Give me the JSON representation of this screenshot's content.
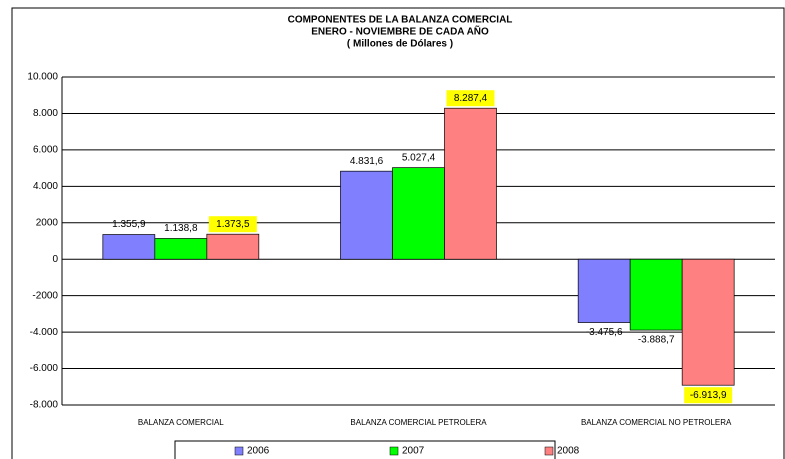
{
  "chart_data": {
    "type": "bar",
    "title": [
      "COMPONENTES DE LA BALANZA COMERCIAL",
      "ENERO - NOVIEMBRE DE CADA AÑO",
      "( Millones de Dólares )"
    ],
    "categories": [
      "BALANZA COMERCIAL",
      "BALANZA COMERCIAL PETROLERA",
      "BALANZA COMERCIAL NO PETROLERA"
    ],
    "series": [
      {
        "name": "2006",
        "color": "#8080ff",
        "values": [
          1355.9,
          4831.6,
          -3475.6
        ],
        "value_labels": [
          "1.355,9",
          "4.831,6",
          "-3.475,6"
        ]
      },
      {
        "name": "2007",
        "color": "#00ff00",
        "values": [
          1138.8,
          5027.4,
          -3888.7
        ],
        "value_labels": [
          "1.138,8",
          "5.027,4",
          "-3.888,7"
        ]
      },
      {
        "name": "2008",
        "color": "#ff8080",
        "values": [
          1373.5,
          8287.4,
          -6913.9
        ],
        "value_labels": [
          "1.373,5",
          "8.287,4",
          "-6.913,9"
        ],
        "label_background": "#ffff00"
      }
    ],
    "ylim": [
      -8000,
      10000
    ],
    "yticks": [
      {
        "value": -8000,
        "label": "-8.000"
      },
      {
        "value": -6000,
        "label": "-6.000"
      },
      {
        "value": -4000,
        "label": "-4.000"
      },
      {
        "value": -2000,
        "label": "-2000"
      },
      0,
      {
        "value": 2000,
        "label": "2000"
      },
      {
        "value": 4000,
        "label": "4.000"
      },
      {
        "value": 6000,
        "label": "6.000"
      },
      {
        "value": 8000,
        "label": "8.000"
      },
      {
        "value": 10000,
        "label": "10.000"
      }
    ],
    "grid": true,
    "legend": "bottom"
  }
}
